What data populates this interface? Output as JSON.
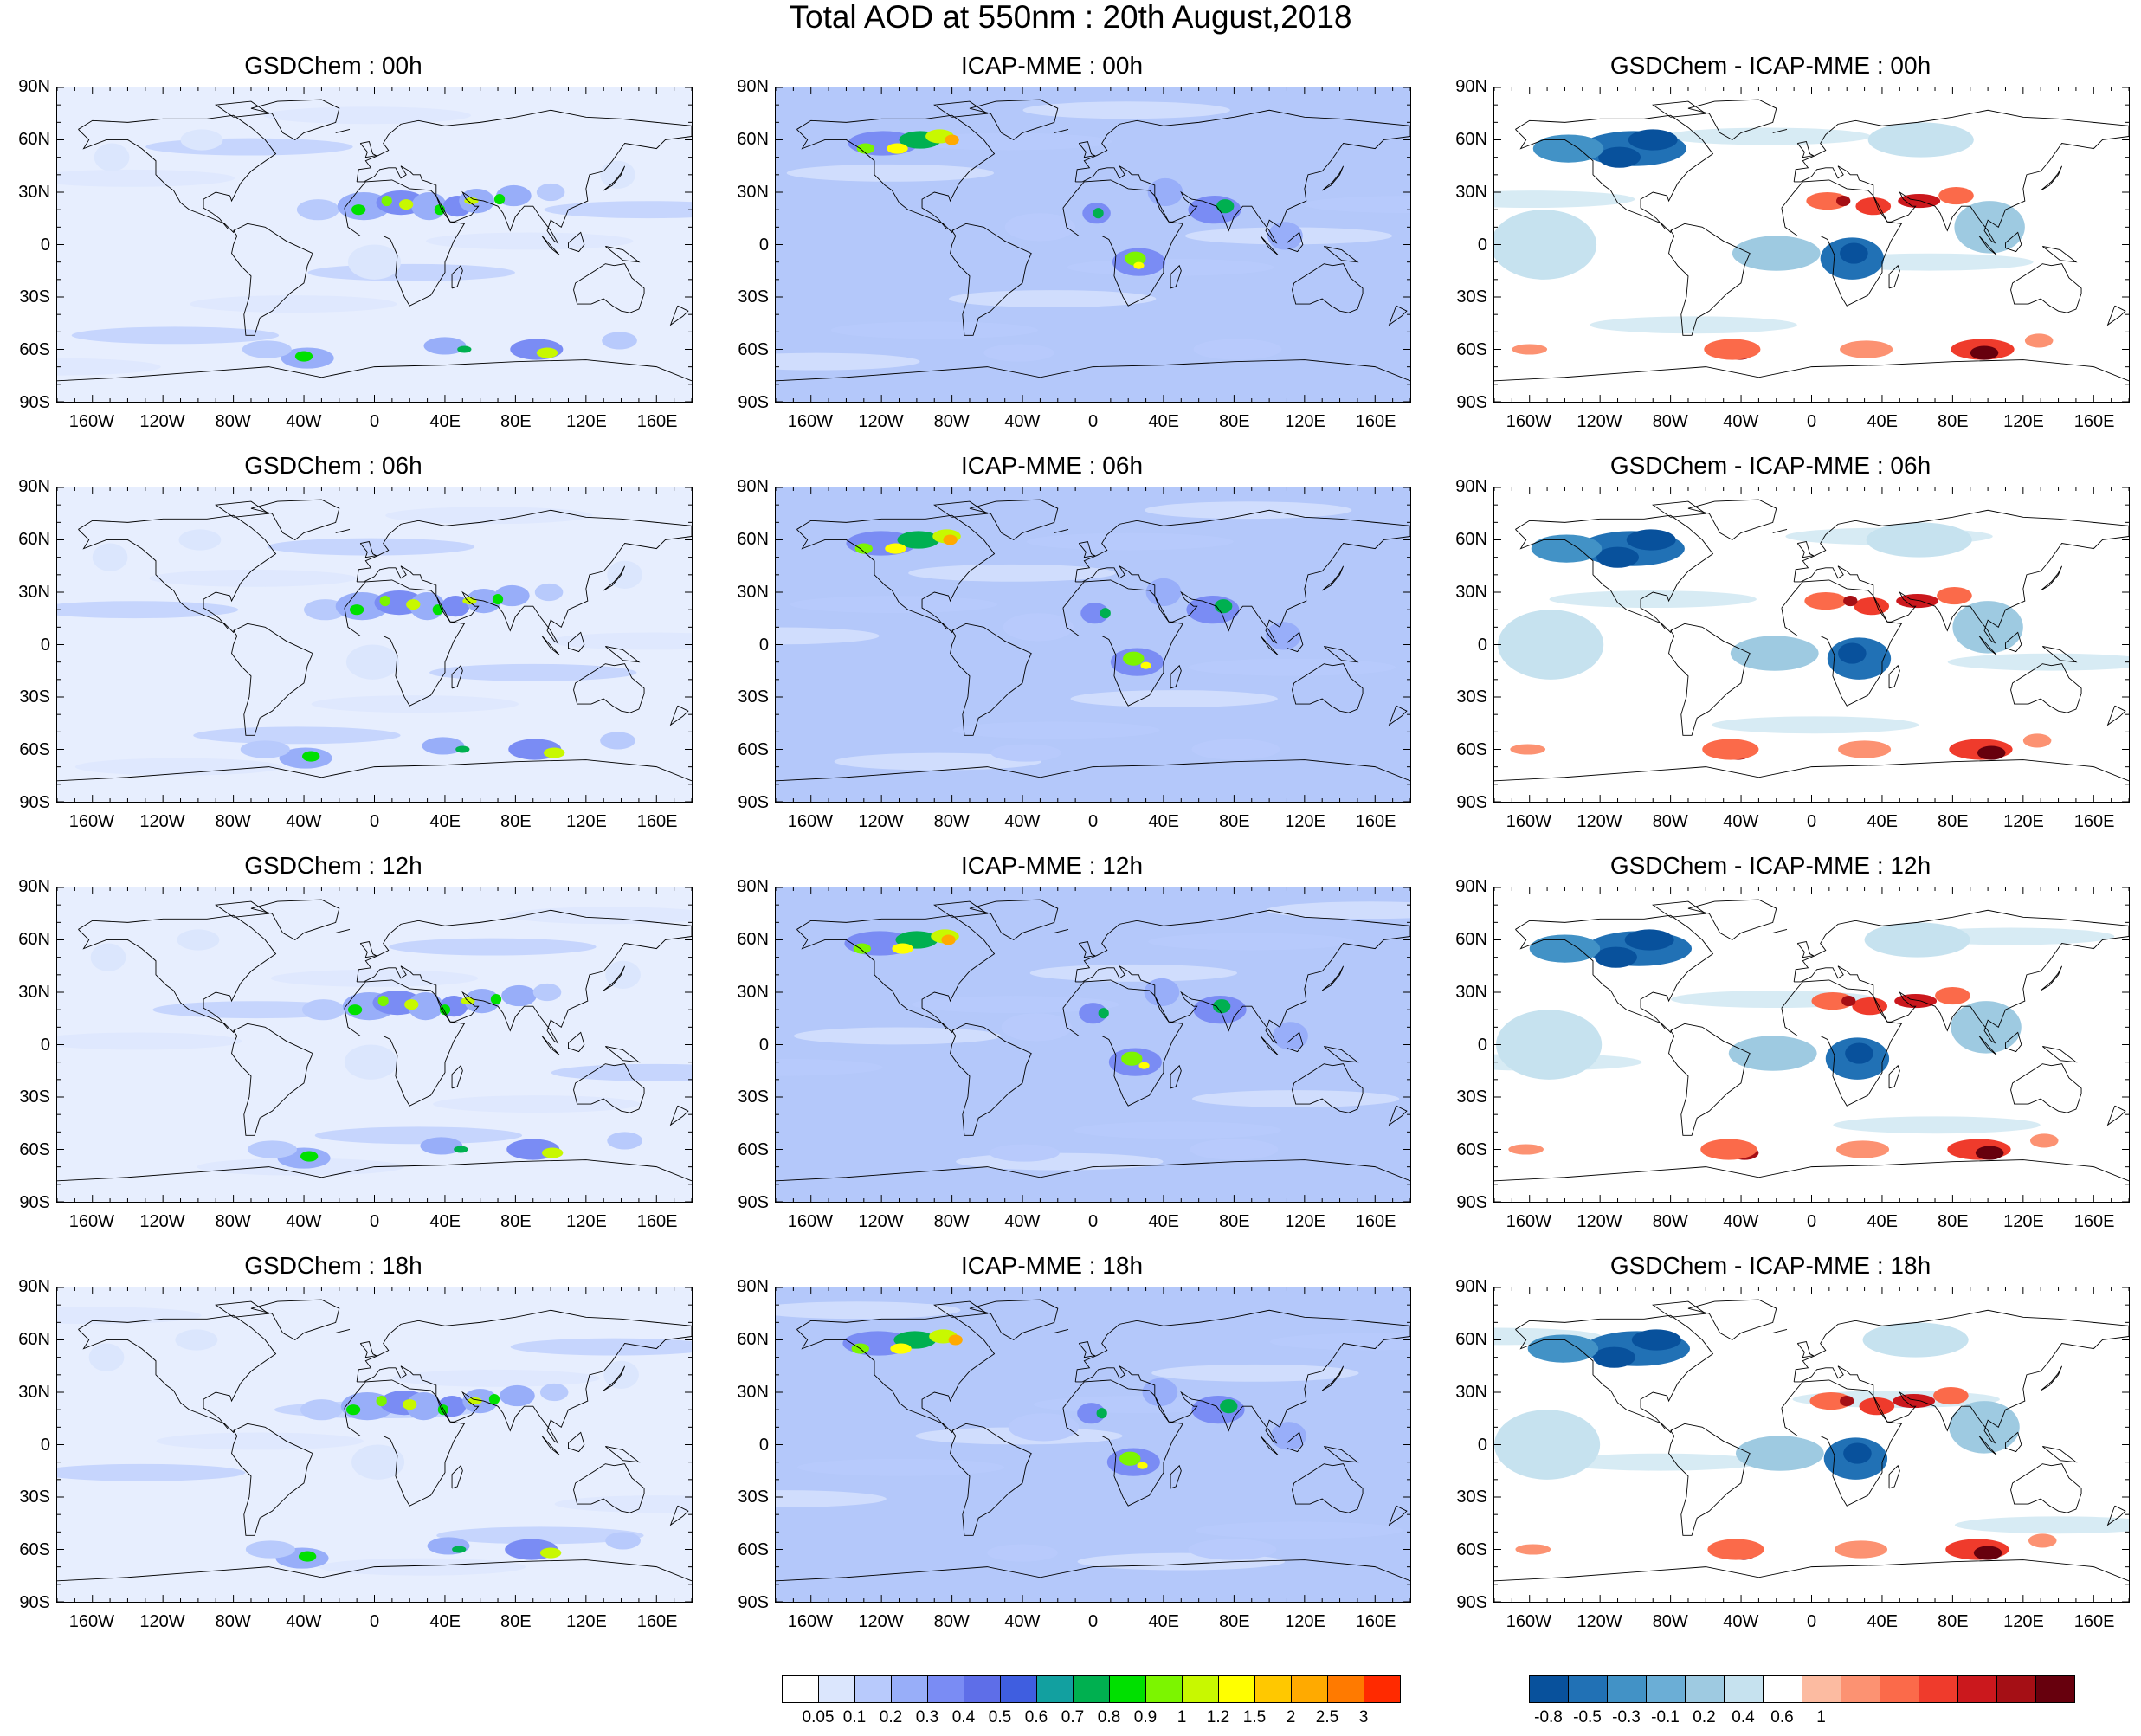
{
  "title": "Total AOD at 550nm : 20th August,2018",
  "lat_labels": [
    "90N",
    "60N",
    "30N",
    "0",
    "30S",
    "60S",
    "90S"
  ],
  "lon_labels": [
    "160W",
    "120W",
    "80W",
    "40W",
    "0",
    "40E",
    "80E",
    "120E",
    "160E"
  ],
  "panels": [
    {
      "title": "GSDChem : 00h",
      "kind": "aod"
    },
    {
      "title": "ICAP-MME : 00h",
      "kind": "icap"
    },
    {
      "title": "GSDChem - ICAP-MME : 00h",
      "kind": "diff"
    },
    {
      "title": "GSDChem : 06h",
      "kind": "aod"
    },
    {
      "title": "ICAP-MME : 06h",
      "kind": "icap"
    },
    {
      "title": "GSDChem - ICAP-MME : 06h",
      "kind": "diff"
    },
    {
      "title": "GSDChem : 12h",
      "kind": "aod"
    },
    {
      "title": "ICAP-MME : 12h",
      "kind": "icap"
    },
    {
      "title": "GSDChem - ICAP-MME : 12h",
      "kind": "diff"
    },
    {
      "title": "GSDChem : 18h",
      "kind": "aod"
    },
    {
      "title": "ICAP-MME : 18h",
      "kind": "icap"
    },
    {
      "title": "GSDChem - ICAP-MME : 18h",
      "kind": "diff"
    }
  ],
  "colorbar_aod": {
    "colors": [
      "#ffffff",
      "#dbe6fd",
      "#b8cafc",
      "#98aef9",
      "#7a8cf4",
      "#5e6ee8",
      "#3f5ee0",
      "#12a0a0",
      "#00b050",
      "#00e000",
      "#7cf500",
      "#c8f800",
      "#ffff00",
      "#ffc800",
      "#ffaa00",
      "#ff7a00",
      "#ff2a00"
    ],
    "labels": [
      "0.05",
      "0.1",
      "0.2",
      "0.3",
      "0.4",
      "0.5",
      "0.6",
      "0.7",
      "0.8",
      "0.9",
      "1",
      "1.2",
      "1.5",
      "2",
      "2.5",
      "3"
    ]
  },
  "colorbar_diff": {
    "colors": [
      "#08519c",
      "#2171b5",
      "#4292c6",
      "#6baed6",
      "#9ecae1",
      "#c6e2ef",
      "#ffffff",
      "#fcbba1",
      "#fc9272",
      "#fb6a4a",
      "#ef3b2c",
      "#cb181d",
      "#a50f15",
      "#67000d"
    ],
    "labels": [
      "-0.8",
      "",
      "-0.5",
      "",
      "-0.3",
      "",
      "-0.1",
      "",
      "0.2",
      "",
      "0.4",
      "",
      "0.6",
      "",
      "1"
    ]
  },
  "colors": {
    "ocean_aod": "#e7eefe",
    "ocean_icap": "#b4c8fa",
    "ocean_diff": "#ffffff",
    "coast": "#000000"
  }
}
